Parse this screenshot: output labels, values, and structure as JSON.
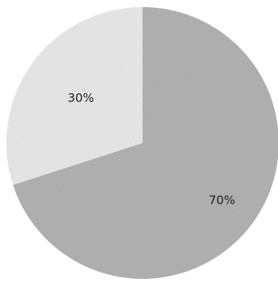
{
  "chart_data": {
    "type": "pie",
    "title": "",
    "start": "top",
    "direction": "clockwise",
    "legend": "none",
    "slices": [
      {
        "label": "70%",
        "value": 70,
        "color": "#b5b5b5"
      },
      {
        "label": "30%",
        "value": 30,
        "color": "#ececec"
      }
    ]
  }
}
